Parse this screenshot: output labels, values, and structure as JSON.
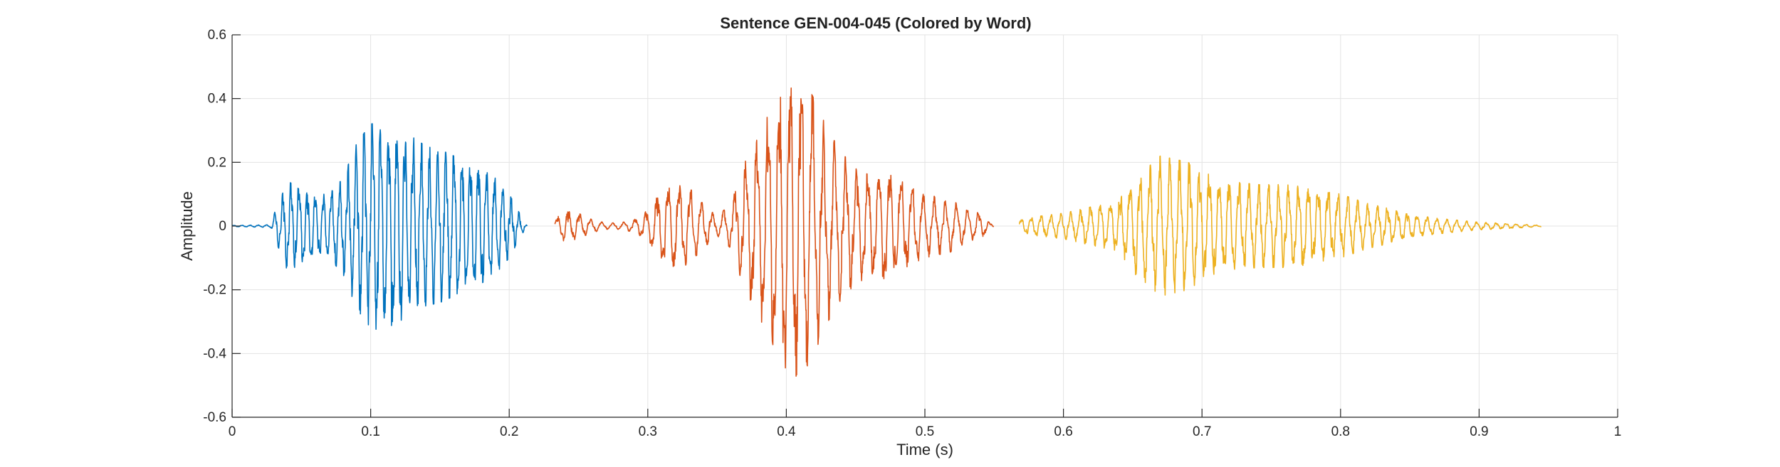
{
  "chart_data": {
    "type": "line",
    "title": "Sentence GEN-004-045 (Colored by Word)",
    "xlabel": "Time (s)",
    "ylabel": "Amplitude",
    "xlim": [
      0,
      1
    ],
    "ylim": [
      -0.6,
      0.6
    ],
    "xticks": [
      0,
      0.1,
      0.2,
      0.3,
      0.4,
      0.5,
      0.6,
      0.7,
      0.8,
      0.9,
      1
    ],
    "xtick_labels": [
      "0",
      "0.1",
      "0.2",
      "0.3",
      "0.4",
      "0.5",
      "0.6",
      "0.7",
      "0.8",
      "0.9",
      "1"
    ],
    "yticks": [
      -0.6,
      -0.4,
      -0.2,
      0,
      0.2,
      0.4,
      0.6
    ],
    "ytick_labels": [
      "-0.6",
      "-0.4",
      "-0.2",
      "0",
      "0.2",
      "0.4",
      "0.6"
    ],
    "grid": true,
    "series": [
      {
        "color": "#0072BD",
        "t_range": [
          0.0,
          0.213
        ],
        "envelope": [
          [
            0.0,
            0.002
          ],
          [
            0.028,
            0.004
          ],
          [
            0.032,
            0.06
          ],
          [
            0.04,
            0.14
          ],
          [
            0.05,
            0.12
          ],
          [
            0.06,
            0.1
          ],
          [
            0.07,
            0.1
          ],
          [
            0.08,
            0.15
          ],
          [
            0.09,
            0.26
          ],
          [
            0.1,
            0.32
          ],
          [
            0.11,
            0.33
          ],
          [
            0.12,
            0.3
          ],
          [
            0.13,
            0.28
          ],
          [
            0.14,
            0.25
          ],
          [
            0.15,
            0.24
          ],
          [
            0.16,
            0.22
          ],
          [
            0.17,
            0.2
          ],
          [
            0.18,
            0.18
          ],
          [
            0.19,
            0.15
          ],
          [
            0.2,
            0.1
          ],
          [
            0.21,
            0.02
          ],
          [
            0.213,
            0.0
          ]
        ]
      },
      {
        "color": "#D95319",
        "t_range": [
          0.233,
          0.55
        ],
        "envelope": [
          [
            0.233,
            0.02
          ],
          [
            0.24,
            0.05
          ],
          [
            0.25,
            0.04
          ],
          [
            0.26,
            0.02
          ],
          [
            0.27,
            0.01
          ],
          [
            0.28,
            0.01
          ],
          [
            0.29,
            0.02
          ],
          [
            0.3,
            0.05
          ],
          [
            0.31,
            0.11
          ],
          [
            0.32,
            0.13
          ],
          [
            0.33,
            0.12
          ],
          [
            0.34,
            0.07
          ],
          [
            0.35,
            0.03
          ],
          [
            0.36,
            0.07
          ],
          [
            0.37,
            0.2
          ],
          [
            0.38,
            0.28
          ],
          [
            0.39,
            0.38
          ],
          [
            0.4,
            0.45
          ],
          [
            0.41,
            0.48
          ],
          [
            0.42,
            0.4
          ],
          [
            0.43,
            0.3
          ],
          [
            0.44,
            0.23
          ],
          [
            0.45,
            0.18
          ],
          [
            0.46,
            0.16
          ],
          [
            0.47,
            0.17
          ],
          [
            0.48,
            0.15
          ],
          [
            0.49,
            0.12
          ],
          [
            0.5,
            0.1
          ],
          [
            0.51,
            0.09
          ],
          [
            0.52,
            0.08
          ],
          [
            0.53,
            0.05
          ],
          [
            0.54,
            0.04
          ],
          [
            0.55,
            0.0
          ]
        ]
      },
      {
        "color": "#EDB120",
        "t_range": [
          0.568,
          0.945
        ],
        "envelope": [
          [
            0.568,
            0.02
          ],
          [
            0.58,
            0.03
          ],
          [
            0.6,
            0.04
          ],
          [
            0.62,
            0.06
          ],
          [
            0.64,
            0.08
          ],
          [
            0.65,
            0.15
          ],
          [
            0.66,
            0.18
          ],
          [
            0.67,
            0.22
          ],
          [
            0.68,
            0.21
          ],
          [
            0.69,
            0.2
          ],
          [
            0.7,
            0.17
          ],
          [
            0.72,
            0.14
          ],
          [
            0.74,
            0.13
          ],
          [
            0.76,
            0.13
          ],
          [
            0.78,
            0.12
          ],
          [
            0.8,
            0.1
          ],
          [
            0.82,
            0.07
          ],
          [
            0.84,
            0.05
          ],
          [
            0.86,
            0.03
          ],
          [
            0.88,
            0.02
          ],
          [
            0.9,
            0.012
          ],
          [
            0.92,
            0.008
          ],
          [
            0.945,
            0.002
          ]
        ]
      }
    ]
  }
}
